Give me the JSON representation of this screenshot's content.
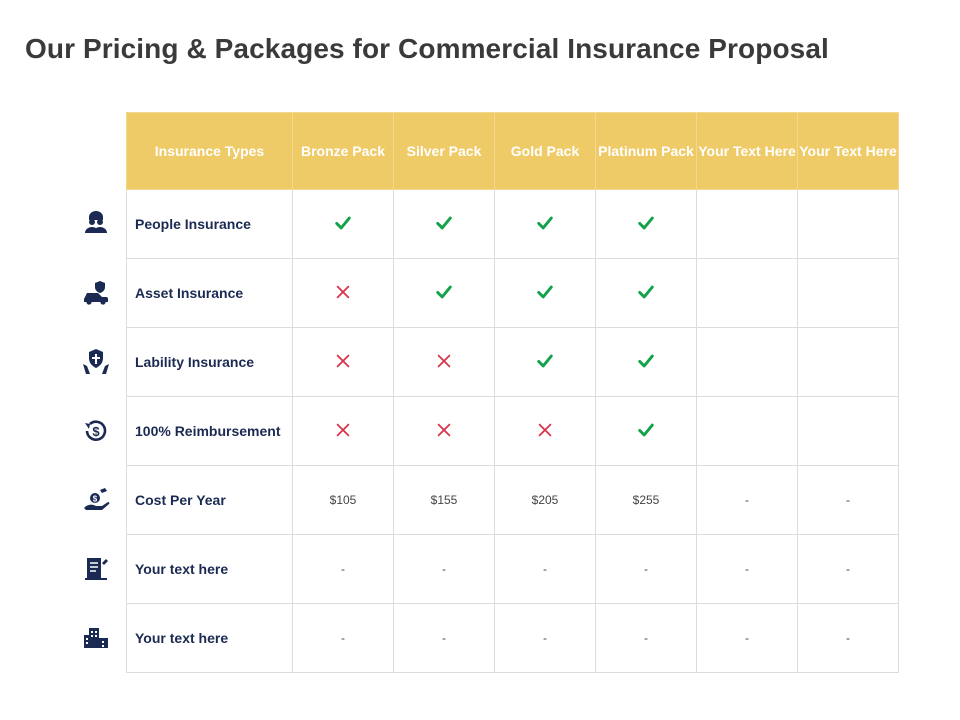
{
  "title": "Our Pricing & Packages for Commercial Insurance Proposal",
  "colors": {
    "header_bg": "#efcb68",
    "check": "#12a24a",
    "cross": "#d9344a",
    "label": "#1b2a52",
    "icon": "#1b2a52"
  },
  "table": {
    "headers": [
      "Insurance Types",
      "Bronze Pack",
      "Silver Pack",
      "Gold Pack",
      "Platinum Pack",
      "Your Text Here",
      "Your Text Here"
    ],
    "rows": [
      {
        "label": "People Insurance",
        "icon": "people-icon",
        "cells": [
          "check",
          "check",
          "check",
          "check",
          "",
          ""
        ]
      },
      {
        "label": "Asset Insurance",
        "icon": "car-shield-icon",
        "cells": [
          "cross",
          "check",
          "check",
          "check",
          "",
          ""
        ]
      },
      {
        "label": "Lability Insurance",
        "icon": "hands-shield-icon",
        "cells": [
          "cross",
          "cross",
          "check",
          "check",
          "",
          ""
        ]
      },
      {
        "label": "100% Reimbursement",
        "icon": "dollar-refresh-icon",
        "cells": [
          "cross",
          "cross",
          "cross",
          "check",
          "",
          ""
        ]
      },
      {
        "label": "Cost Per Year",
        "icon": "hand-coin-icon",
        "cells": [
          "$105",
          "$155",
          "$205",
          "$255",
          "-",
          "-"
        ]
      },
      {
        "label": "Your text here",
        "icon": "document-pen-icon",
        "cells": [
          "-",
          "-",
          "-",
          "-",
          "-",
          "-"
        ]
      },
      {
        "label": "Your text here",
        "icon": "buildings-icon",
        "cells": [
          "-",
          "-",
          "-",
          "-",
          "-",
          "-"
        ]
      }
    ]
  }
}
